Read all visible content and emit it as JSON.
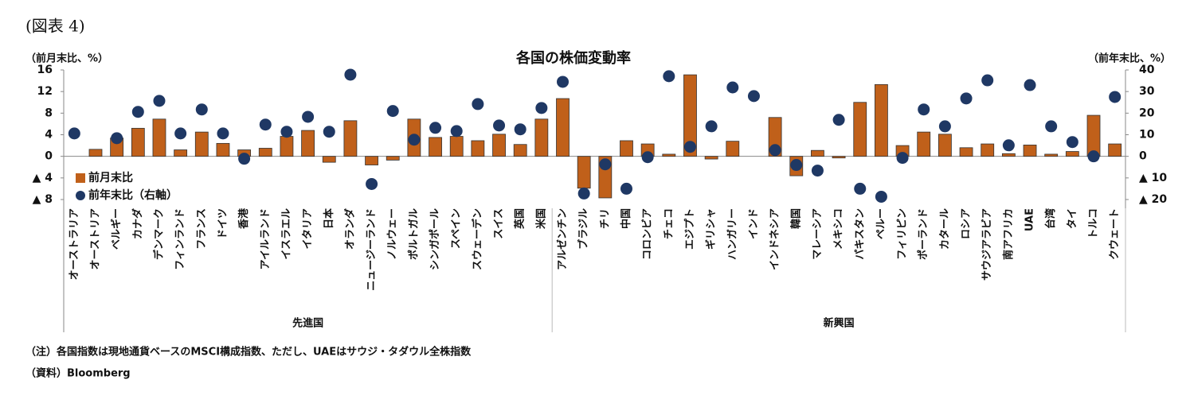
{
  "figure_label": "(図表 4)",
  "chart_data": {
    "type": "bar_dot",
    "title": "各国の株価変動率",
    "y_label": "（前月末比、%）",
    "y2_label": "（前年末比、%）",
    "groups": [
      {
        "name": "先進国",
        "categories": [
          "オーストラリア",
          "オーストリア",
          "ベルギー",
          "カナダ",
          "デンマーク",
          "フィンランド",
          "フランス",
          "ドイツ",
          "香港",
          "アイルランド",
          "イスラエル",
          "イタリア",
          "日本",
          "オランダ",
          "ニュージーランド",
          "ノルウェー",
          "ポルトガル",
          "シンガポール",
          "スペイン",
          "スウェーデン",
          "スイス",
          "英国",
          "米国"
        ]
      },
      {
        "name": "新興国",
        "categories": [
          "アルゼンチン",
          "ブラジル",
          "チリ",
          "中国",
          "コロンビア",
          "チェコ",
          "エジプト",
          "ギリシャ",
          "ハンガリー",
          "インド",
          "インドネシア",
          "韓国",
          "マレーシア",
          "メキシコ",
          "パキスタン",
          "ペルー",
          "フィリピン",
          "ポーランド",
          "カタール",
          "ロシア",
          "サウジアラビア",
          "南アフリカ",
          "UAE",
          "台湾",
          "タイ",
          "トルコ",
          "クウェート"
        ]
      }
    ],
    "series": [
      {
        "name": "前月末比",
        "color": "#c0601a",
        "values": [
          0,
          1.3,
          3.4,
          5.2,
          6.9,
          1.2,
          4.5,
          2.4,
          1.2,
          1.5,
          3.7,
          4.8,
          -1.1,
          6.6,
          -1.6,
          -0.7,
          6.9,
          3.5,
          3.7,
          2.9,
          4.1,
          2.2,
          6.9,
          10.7,
          -5.9,
          -7.7,
          2.9,
          2.3,
          0.4,
          15.1,
          -0.5,
          2.8,
          0,
          7.2,
          -3.6,
          1.1,
          -0.3,
          10.0,
          13.3,
          2.0,
          4.5,
          4.1,
          1.6,
          2.3,
          0.5,
          2.1,
          0.4,
          0.9,
          7.6,
          2.3
        ]
      },
      {
        "name": "前年末比（右軸）",
        "color": "#1f3864",
        "axis": "y2",
        "values": [
          10.6,
          null,
          8.4,
          20.6,
          25.7,
          10.6,
          21.7,
          10.6,
          -1.1,
          14.7,
          11.4,
          18.3,
          11.4,
          37.8,
          -12.8,
          21,
          7.7,
          13.2,
          11.7,
          24.2,
          14.3,
          12.5,
          22.4,
          34.5,
          -17.2,
          -3.7,
          -15,
          -0.4,
          37.1,
          4.4,
          13.9,
          31.9,
          27.9,
          2.9,
          -4,
          -6.6,
          16.9,
          -15,
          -18.7,
          -0.7,
          21.7,
          13.9,
          26.8,
          35.2,
          5.1,
          33,
          13.9,
          6.6,
          0,
          27.5
        ]
      }
    ],
    "ylim": [
      -8,
      16
    ],
    "yticks": [
      {
        "value": -8,
        "label": "▲ 8"
      },
      {
        "value": -4,
        "label": "▲ 4"
      },
      0,
      4,
      8,
      12,
      16
    ],
    "y2lim": [
      -20,
      40
    ],
    "y2ticks": [
      {
        "value": -20,
        "label": "▲ 20"
      },
      {
        "value": -10,
        "label": "▲ 10"
      },
      0,
      10,
      20,
      30,
      40
    ]
  },
  "notes": [
    "（注）各国指数は現地通貨ベースのMSCI構成指数、ただし、UAEはサウジ・タダウル全株指数",
    "（資料）Bloomberg"
  ]
}
